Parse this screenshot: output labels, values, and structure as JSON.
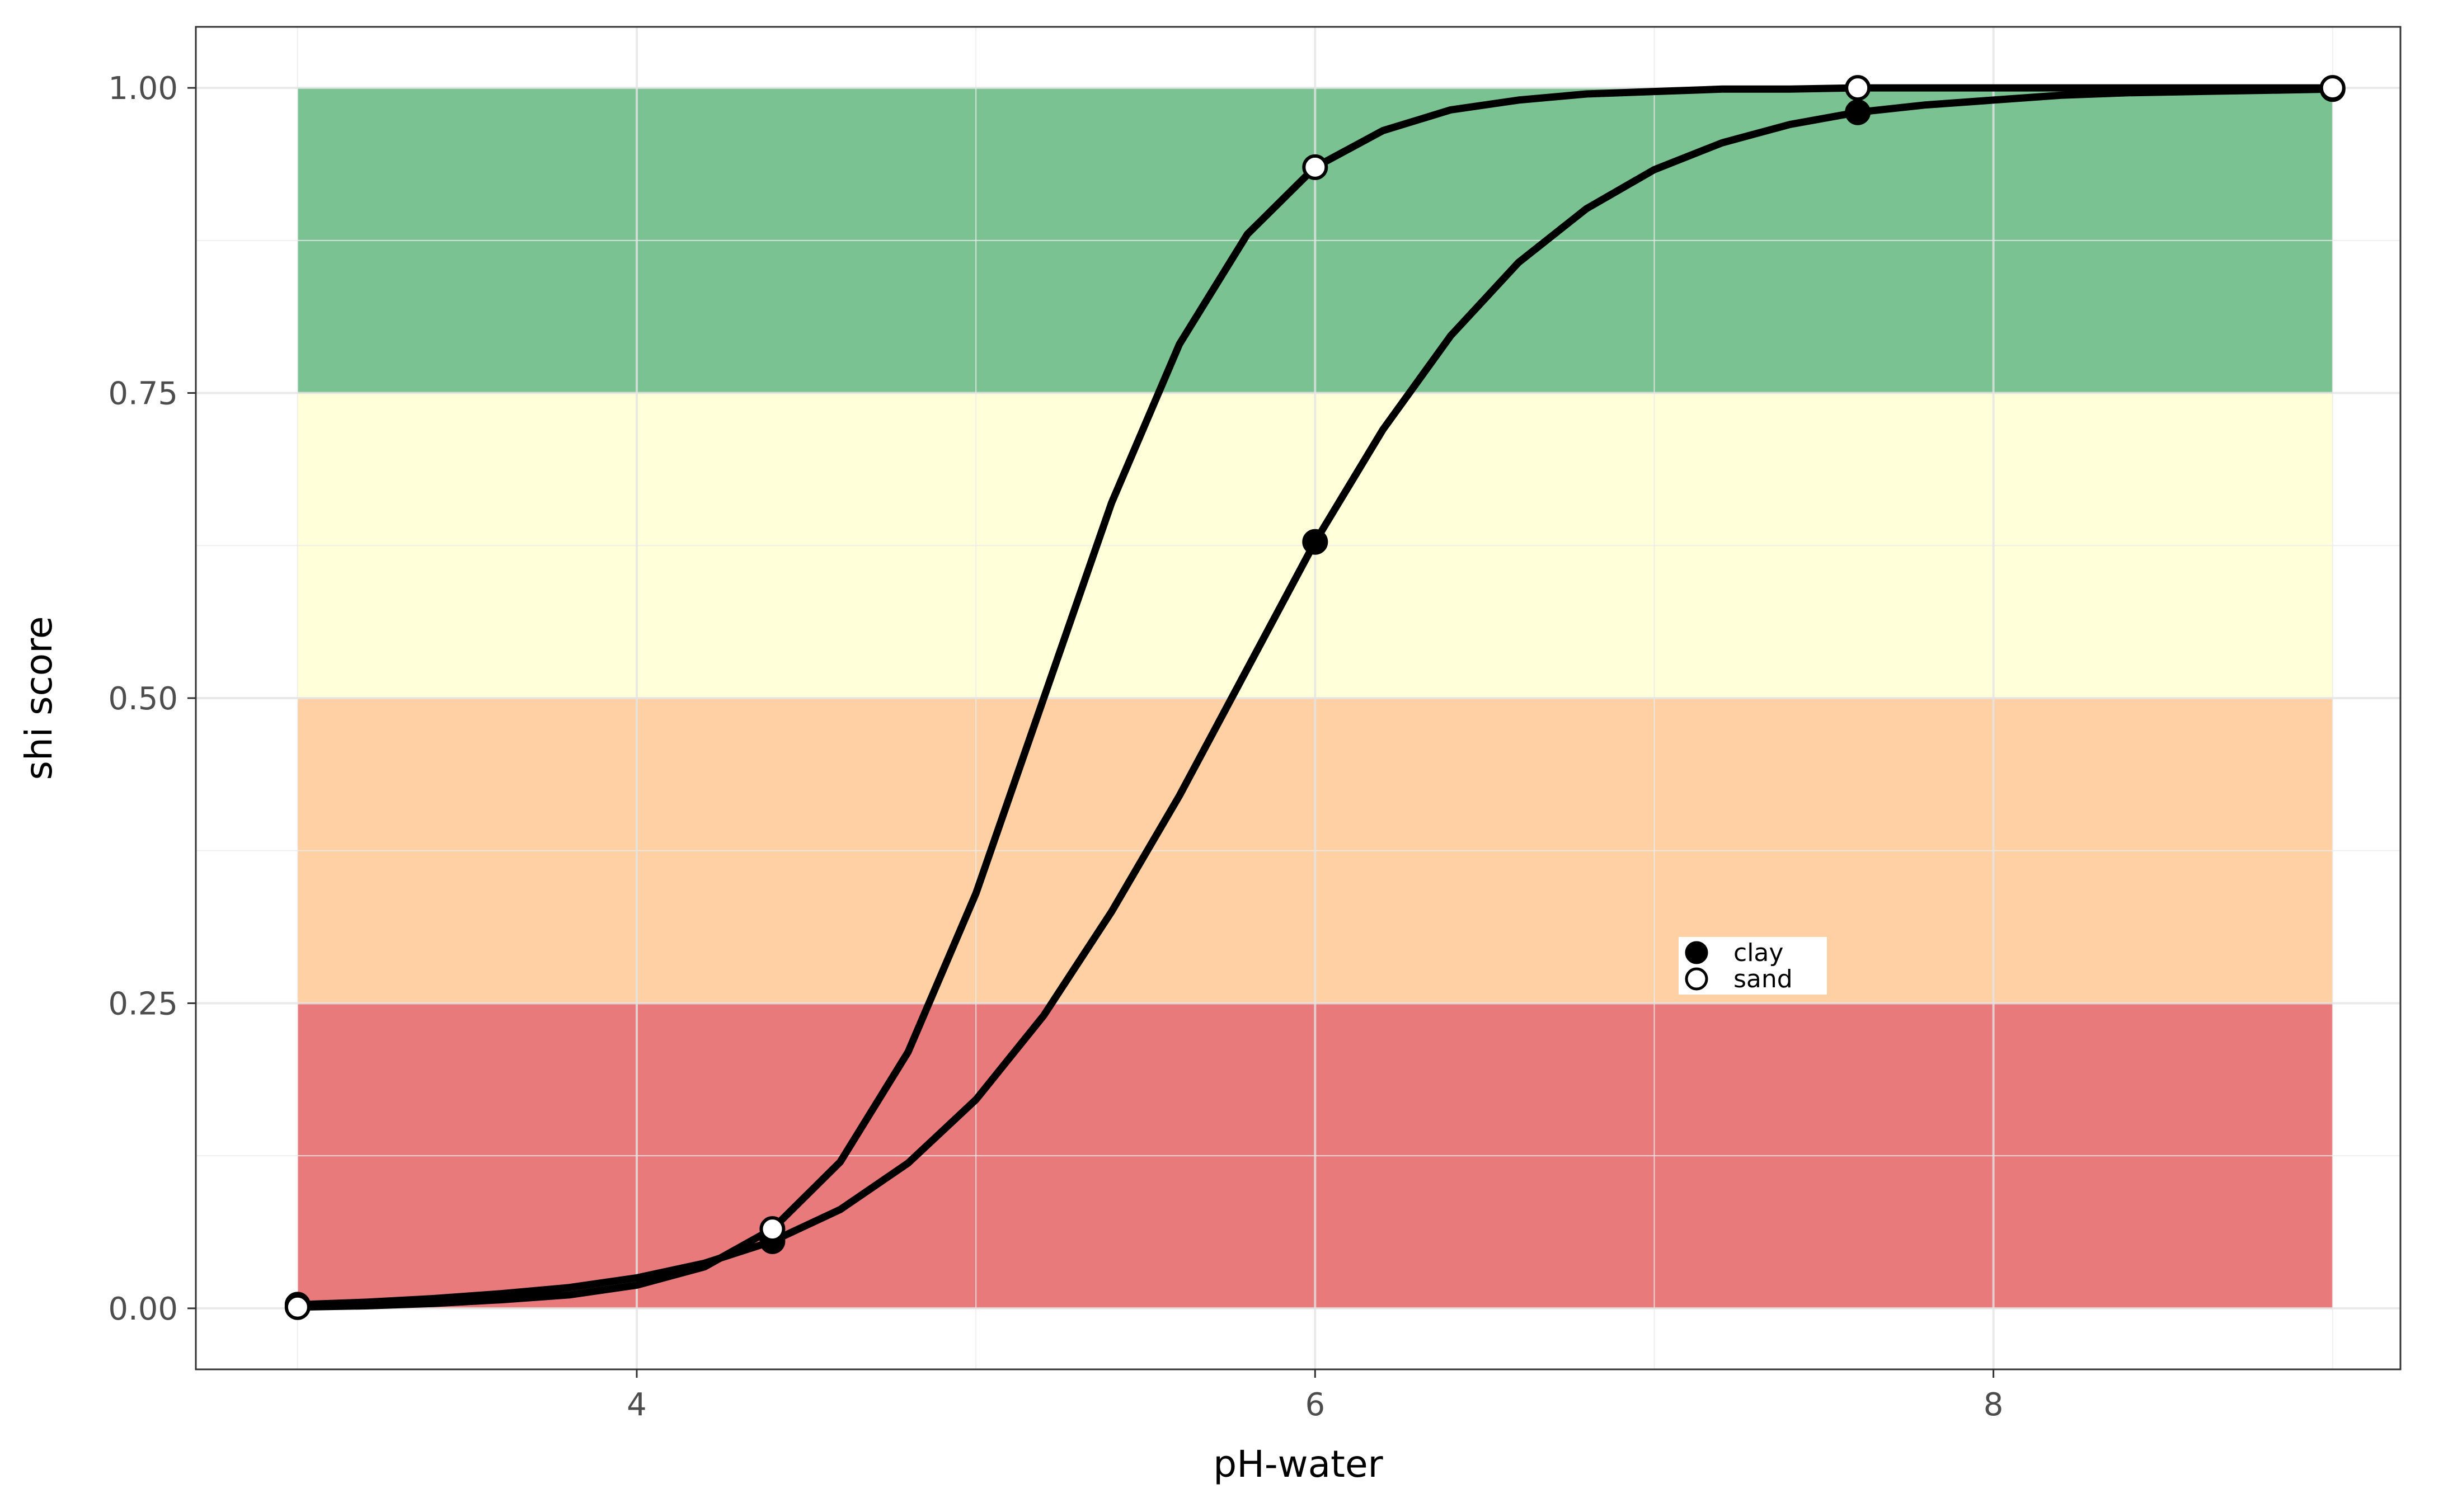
{
  "chart_data": {
    "type": "line",
    "title": "",
    "xlabel": "pH-water",
    "ylabel": "shi score",
    "xlim": [
      2.7,
      9.2
    ],
    "ylim": [
      -0.05,
      1.05
    ],
    "x_ticks": [
      4,
      6,
      8
    ],
    "x_tick_labels": [
      "4",
      "6",
      "8"
    ],
    "y_ticks": [
      0,
      0.25,
      0.5,
      0.75,
      1
    ],
    "y_tick_labels": [
      "0.00",
      "0.25",
      "0.50",
      "0.75",
      "1.00"
    ],
    "grid": true,
    "legend_position": "inside-right",
    "bands": [
      {
        "from": 0.0,
        "to": 0.25,
        "x_from": 3,
        "x_to": 9,
        "color": "#d7191c"
      },
      {
        "from": 0.25,
        "to": 0.5,
        "x_from": 3,
        "x_to": 9,
        "color": "#fdae61"
      },
      {
        "from": 0.5,
        "to": 0.75,
        "x_from": 3,
        "x_to": 9,
        "color": "#ffffbf"
      },
      {
        "from": 0.75,
        "to": 1.0,
        "x_from": 3,
        "x_to": 9,
        "color": "#1a9641"
      }
    ],
    "series": [
      {
        "name": "clay",
        "marker": "filled-circle",
        "line_x": [
          3.0,
          3.2,
          3.4,
          3.6,
          3.8,
          4.0,
          4.2,
          4.4,
          4.6,
          4.8,
          5.0,
          5.2,
          5.4,
          5.6,
          5.8,
          6.0,
          6.2,
          6.4,
          6.6,
          6.8,
          7.0,
          7.2,
          7.4,
          7.6,
          7.8,
          8.0,
          8.2,
          8.4,
          8.6,
          8.8,
          9.0
        ],
        "line_y": [
          0.003,
          0.005,
          0.008,
          0.012,
          0.017,
          0.025,
          0.037,
          0.055,
          0.081,
          0.119,
          0.171,
          0.24,
          0.325,
          0.42,
          0.524,
          0.628,
          0.72,
          0.797,
          0.857,
          0.901,
          0.933,
          0.955,
          0.97,
          0.98,
          0.986,
          0.99,
          0.994,
          0.996,
          0.997,
          0.998,
          0.999
        ],
        "points_x": [
          3.0,
          4.4,
          6.0,
          7.6,
          9.0
        ],
        "points_y": [
          0.003,
          0.055,
          0.628,
          0.98,
          0.999
        ]
      },
      {
        "name": "sand",
        "marker": "open-circle",
        "line_x": [
          3.0,
          3.2,
          3.4,
          3.6,
          3.8,
          4.0,
          4.2,
          4.4,
          4.6,
          4.8,
          5.0,
          5.2,
          5.4,
          5.6,
          5.8,
          6.0,
          6.2,
          6.4,
          6.6,
          6.8,
          7.0,
          7.2,
          7.4,
          7.6,
          7.8,
          8.0,
          8.2,
          8.4,
          8.6,
          8.8,
          9.0
        ],
        "line_y": [
          0.001,
          0.002,
          0.004,
          0.007,
          0.011,
          0.019,
          0.034,
          0.065,
          0.12,
          0.21,
          0.34,
          0.5,
          0.66,
          0.79,
          0.88,
          0.935,
          0.965,
          0.982,
          0.99,
          0.995,
          0.997,
          0.999,
          0.999,
          1.0,
          1.0,
          1.0,
          1.0,
          1.0,
          1.0,
          1.0,
          1.0
        ],
        "points_x": [
          3.0,
          4.4,
          6.0,
          7.6,
          9.0
        ],
        "points_y": [
          0.001,
          0.065,
          0.935,
          1.0,
          1.0
        ]
      }
    ]
  }
}
